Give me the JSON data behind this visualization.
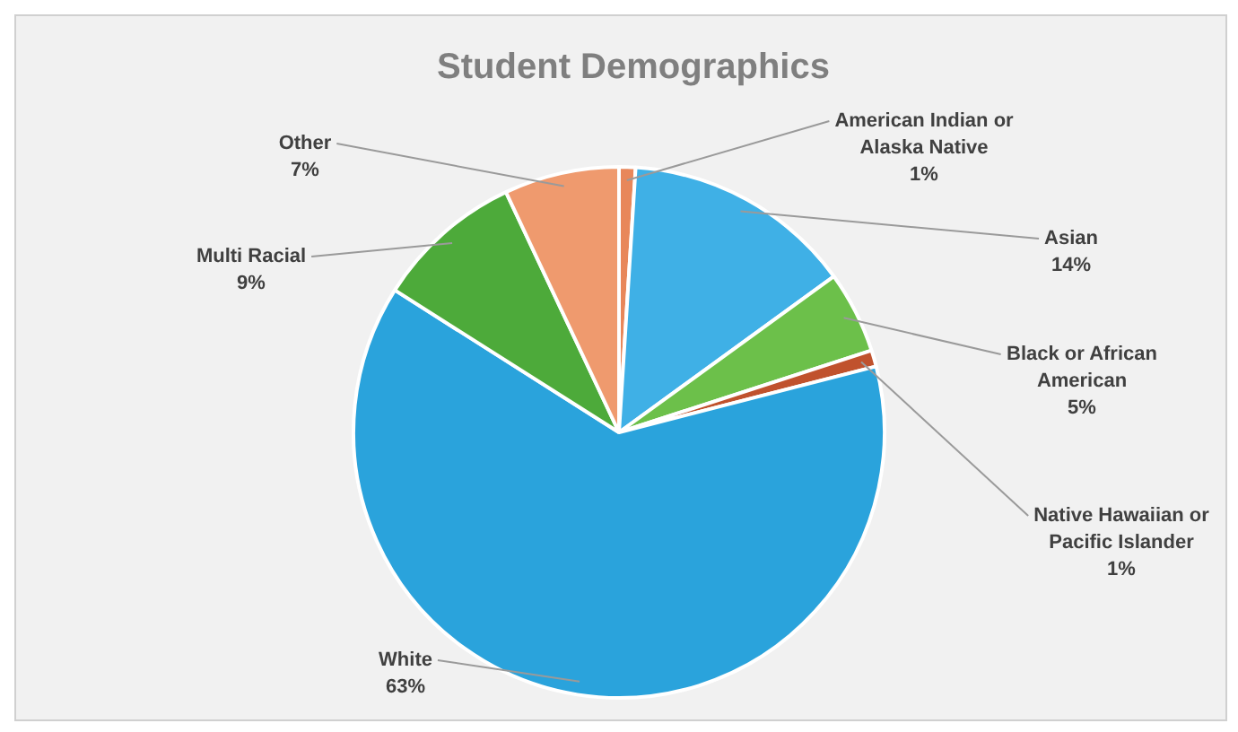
{
  "chart_data": {
    "type": "pie",
    "title": "Student Demographics",
    "categories": [
      "American Indian or Alaska Native",
      "Asian",
      "Black or African American",
      "Native Hawaiian or Pacific Islander",
      "White",
      "Multi Racial",
      "Other"
    ],
    "values": [
      1,
      14,
      5,
      1,
      63,
      9,
      7
    ],
    "colors": [
      "#e8875a",
      "#3fb0e6",
      "#6cc04a",
      "#c0522d",
      "#2aa3dc",
      "#4daa3a",
      "#ef9a6e"
    ],
    "value_labels": [
      "1%",
      "14%",
      "5%",
      "1%",
      "63%",
      "9%",
      "7%"
    ],
    "legend": false
  }
}
